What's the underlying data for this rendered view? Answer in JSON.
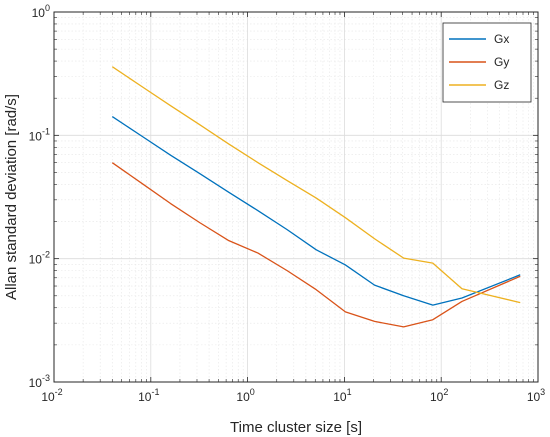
{
  "chart_data": {
    "type": "line",
    "xlabel": "Time cluster size [s]",
    "ylabel": "Allan standard deviation [rad/s]",
    "x_scale": "log",
    "y_scale": "log",
    "xlim": [
      0.01,
      1000
    ],
    "ylim": [
      0.001,
      1
    ],
    "x_tick_labels": [
      {
        "mant": "10",
        "exp": "-2"
      },
      {
        "mant": "10",
        "exp": "-1"
      },
      {
        "mant": "10",
        "exp": "0"
      },
      {
        "mant": "10",
        "exp": "1"
      },
      {
        "mant": "10",
        "exp": "2"
      },
      {
        "mant": "10",
        "exp": "3"
      }
    ],
    "y_tick_labels": [
      {
        "mant": "10",
        "exp": "-3"
      },
      {
        "mant": "10",
        "exp": "-2"
      },
      {
        "mant": "10",
        "exp": "-1"
      },
      {
        "mant": "10",
        "exp": "0"
      }
    ],
    "grid": true,
    "minor_grid": true,
    "legend_position": "top-right",
    "series": [
      {
        "name": "Gx",
        "color": "#0072BD",
        "x": [
          0.04,
          0.08,
          0.16,
          0.32,
          0.64,
          1.28,
          2.56,
          5.12,
          10.24,
          20.48,
          40.96,
          81.92,
          163.84,
          655.36
        ],
        "y": [
          0.142,
          0.099,
          0.069,
          0.049,
          0.0345,
          0.0245,
          0.0172,
          0.0118,
          0.0089,
          0.0061,
          0.005,
          0.0042,
          0.0048,
          0.0074
        ]
      },
      {
        "name": "Gy",
        "color": "#D95319",
        "x": [
          0.04,
          0.08,
          0.16,
          0.32,
          0.64,
          1.28,
          2.56,
          5.12,
          10.24,
          20.48,
          40.96,
          81.92,
          163.84,
          655.36
        ],
        "y": [
          0.06,
          0.041,
          0.028,
          0.0196,
          0.014,
          0.0111,
          0.008,
          0.0056,
          0.0037,
          0.0031,
          0.0028,
          0.0032,
          0.0045,
          0.0072
        ]
      },
      {
        "name": "Gz",
        "color": "#EDB120",
        "x": [
          0.04,
          0.08,
          0.16,
          0.32,
          0.64,
          1.28,
          2.56,
          5.12,
          10.24,
          20.48,
          40.96,
          81.92,
          163.84,
          655.36
        ],
        "y": [
          0.36,
          0.25,
          0.174,
          0.122,
          0.085,
          0.06,
          0.043,
          0.031,
          0.0215,
          0.0145,
          0.0101,
          0.0092,
          0.0057,
          0.0044
        ]
      }
    ]
  }
}
